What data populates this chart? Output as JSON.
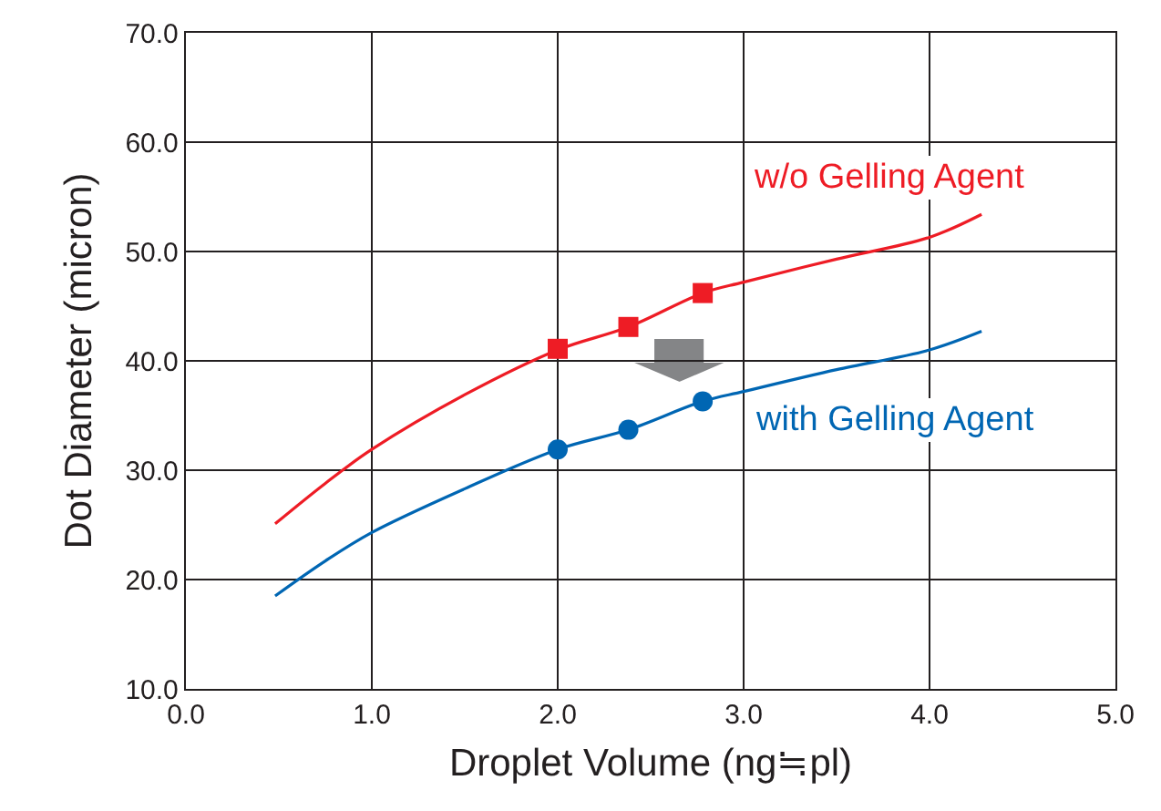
{
  "chart_data": {
    "type": "line",
    "xlabel": "Droplet Volume (ng≒pl)",
    "ylabel": "Dot Diameter (micron)",
    "xlim": [
      0,
      5
    ],
    "ylim": [
      10,
      70
    ],
    "xticks": [
      {
        "value": 0,
        "label": "0.0"
      },
      {
        "value": 1,
        "label": "1.0"
      },
      {
        "value": 2,
        "label": "2.0"
      },
      {
        "value": 3,
        "label": "3.0"
      },
      {
        "value": 4,
        "label": "4.0"
      },
      {
        "value": 5,
        "label": "5.0"
      }
    ],
    "yticks": [
      {
        "value": 10,
        "label": "10.0"
      },
      {
        "value": 20,
        "label": "20.0"
      },
      {
        "value": 30,
        "label": "30.0"
      },
      {
        "value": 40,
        "label": "40.0"
      },
      {
        "value": 50,
        "label": "50.0"
      },
      {
        "value": 60,
        "label": "60.0"
      },
      {
        "value": 70,
        "label": "70.0"
      }
    ],
    "grid": true,
    "legend": false,
    "line_style": "solid",
    "series": [
      {
        "name": "w/o Gelling Agent",
        "type": "line",
        "marker": "none",
        "color": "#ee1c25",
        "x": [
          0.48,
          0.75,
          1.0,
          1.5,
          2.0,
          2.38,
          2.78,
          3.0,
          3.5,
          4.0,
          4.28
        ],
        "values": [
          25.1,
          28.8,
          31.9,
          36.9,
          41.0,
          43.1,
          46.2,
          47.2,
          49.3,
          51.3,
          53.4
        ]
      },
      {
        "type": "scatter",
        "marker": "square",
        "color": "#ee1c25",
        "x": [
          2.0,
          2.38,
          2.78
        ],
        "values": [
          41.1,
          43.1,
          46.2
        ]
      },
      {
        "name": "with Gelling Agent",
        "type": "line",
        "marker": "none",
        "color": "#0066b3",
        "x": [
          0.48,
          0.75,
          1.0,
          1.5,
          2.0,
          2.38,
          2.78,
          3.0,
          3.5,
          4.0,
          4.28
        ],
        "values": [
          18.5,
          21.7,
          24.3,
          28.3,
          31.9,
          33.7,
          36.3,
          37.2,
          39.2,
          41.0,
          42.7
        ]
      },
      {
        "type": "scatter",
        "marker": "circle",
        "color": "#0066b3",
        "x": [
          2.0,
          2.38,
          2.78
        ],
        "values": [
          31.9,
          33.7,
          36.3
        ]
      }
    ]
  }
}
